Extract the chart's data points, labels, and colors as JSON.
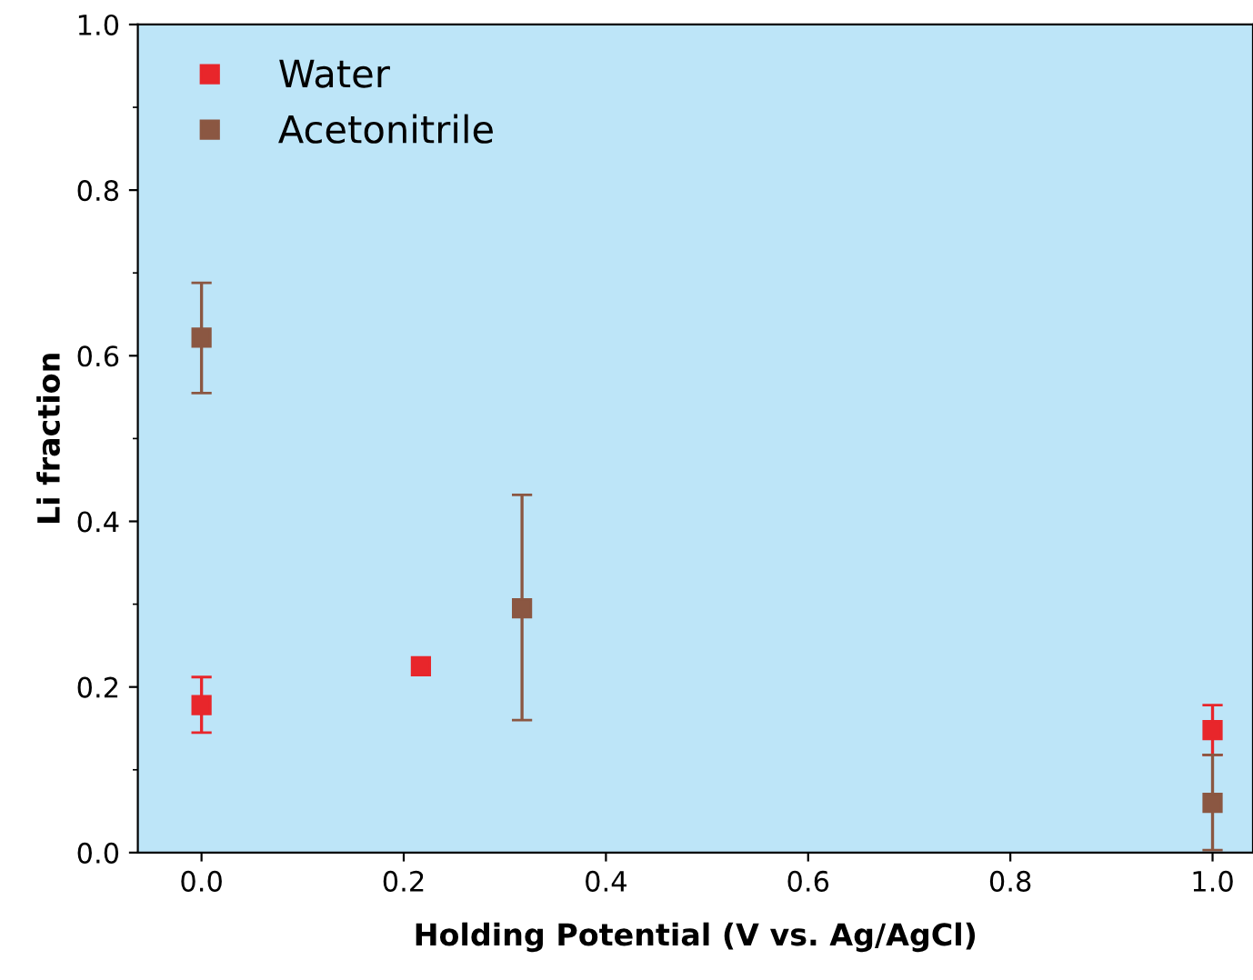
{
  "chart_data": {
    "type": "scatter",
    "xlabel": "Holding Potential (V vs. Ag/AgCl)",
    "ylabel": "Li fraction",
    "xlim": [
      -0.063,
      1.04
    ],
    "ylim": [
      0,
      1
    ],
    "xticks": [
      {
        "value": 0,
        "label": "0.0"
      },
      {
        "value": 0.2,
        "label": "0.2"
      },
      {
        "value": 0.4,
        "label": "0.4"
      },
      {
        "value": 0.6,
        "label": "0.6"
      },
      {
        "value": 0.8,
        "label": "0.8"
      },
      {
        "value": 1,
        "label": "1.0"
      }
    ],
    "yticks": [
      {
        "value": 0,
        "label": "0.0"
      },
      {
        "value": 0.2,
        "label": "0.2"
      },
      {
        "value": 0.4,
        "label": "0.4"
      },
      {
        "value": 0.6,
        "label": "0.6"
      },
      {
        "value": 0.8,
        "label": "0.8"
      },
      {
        "value": 1,
        "label": "1.0"
      }
    ],
    "marker": "square",
    "legend": "top left",
    "grid": false,
    "series": [
      {
        "name": "Water",
        "color": "#e8262b",
        "x": [
          0,
          0.217,
          1.0
        ],
        "values": [
          0.178,
          0.225,
          0.148
        ],
        "errors": [
          [
            0.145,
            0.212
          ],
          null,
          [
            0.118,
            0.178
          ]
        ]
      },
      {
        "name": "Acetonitrile",
        "color": "#8b5742",
        "x": [
          0,
          0.317,
          1.0
        ],
        "values": [
          0.622,
          0.295,
          0.06
        ],
        "errors": [
          [
            0.555,
            0.688
          ],
          [
            0.16,
            0.432
          ],
          [
            0.003,
            0.118
          ]
        ]
      }
    ]
  }
}
